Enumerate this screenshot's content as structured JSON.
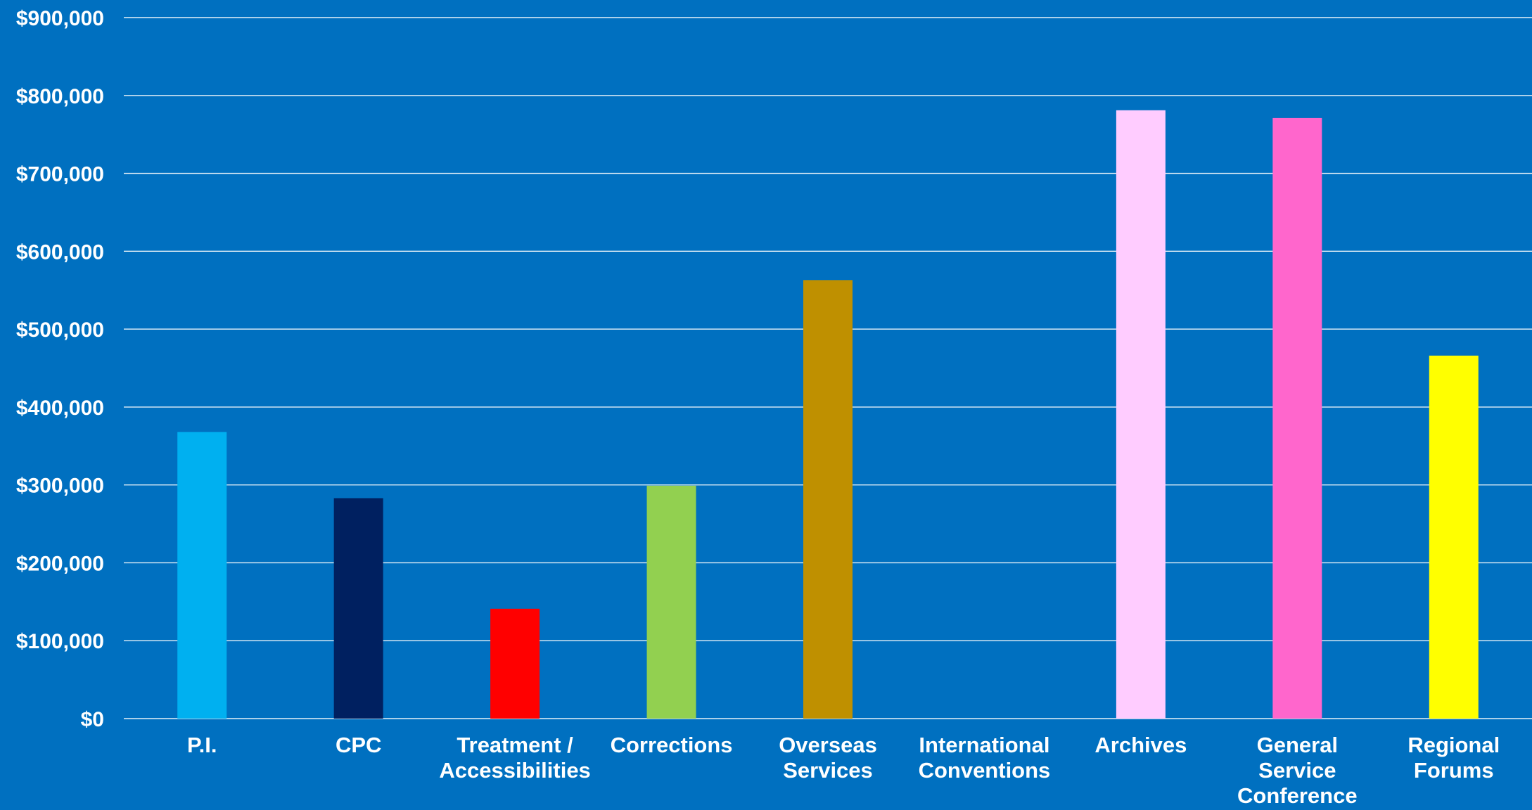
{
  "chart_data": {
    "type": "bar",
    "title": "",
    "xlabel": "",
    "ylabel": "",
    "ylim": [
      0,
      900000
    ],
    "yticks": [
      0,
      100000,
      200000,
      300000,
      400000,
      500000,
      600000,
      700000,
      800000,
      900000
    ],
    "ytick_labels": [
      "$0",
      "$100,000",
      "$200,000",
      "$300,000",
      "$400,000",
      "$500,000",
      "$600,000",
      "$700,000",
      "$800,000",
      "$900,000"
    ],
    "grid": true,
    "legend": "none",
    "categories": [
      [
        "P.I."
      ],
      [
        "CPC"
      ],
      [
        "Treatment /",
        "Accessibilities"
      ],
      [
        "Corrections"
      ],
      [
        "Overseas",
        "Services"
      ],
      [
        "International",
        "Conventions"
      ],
      [
        "Archives"
      ],
      [
        "General",
        "Service",
        "Conference"
      ],
      [
        "Regional",
        "Forums"
      ]
    ],
    "values": [
      368000,
      283000,
      141000,
      299000,
      563000,
      0,
      781000,
      771000,
      466000
    ],
    "colors": [
      "#00B0F0",
      "#002060",
      "#FF0000",
      "#92D050",
      "#BF9000",
      "#0070C0",
      "#FFCCFF",
      "#FF66CC",
      "#FFFF00"
    ],
    "background_color": "#0070C0",
    "text_color": "#FFFFFF"
  }
}
